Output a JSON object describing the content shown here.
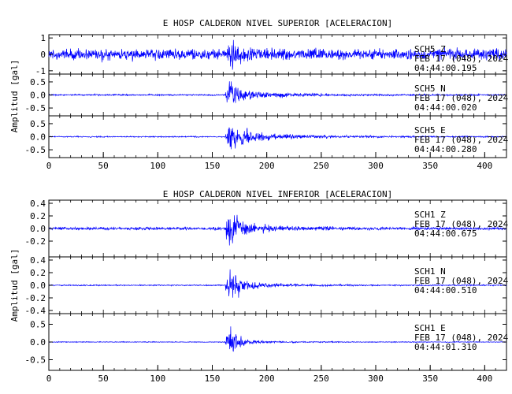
{
  "figure": {
    "panels": [
      {
        "title": "E HOSP CALDERON NIVEL SUPERIOR [ACELERACION]",
        "ylabel": "Amplitud [gal]",
        "traces": [
          {
            "channel": "SCH5   Z",
            "date": "FEB 17 (048), 2024",
            "time": "04:44:00.195",
            "yticks": [
              -1,
              0,
              1
            ],
            "ytick_labels": [
              "-1",
              "0",
              "1"
            ],
            "ylim": [
              -1.2,
              1.2
            ],
            "noise": 0.58,
            "peak": 1.15,
            "decay": 10,
            "tail": 0.15
          },
          {
            "channel": "SCH5   N",
            "date": "FEB 17 (048), 2024",
            "time": "04:44:00.020",
            "yticks": [
              -0.5,
              0.0,
              0.5
            ],
            "ytick_labels": [
              "-0.5",
              "0.0",
              "0.5"
            ],
            "ylim": [
              -0.8,
              0.8
            ],
            "noise": 0.05,
            "peak": 0.75,
            "decay": 14,
            "tail": 0.3
          },
          {
            "channel": "SCH5   E",
            "date": "FEB 17 (048), 2024",
            "time": "04:44:00.280",
            "yticks": [
              -0.5,
              0.0,
              0.5
            ],
            "ytick_labels": [
              "-0.5",
              "0.0",
              "0.5"
            ],
            "ylim": [
              -0.8,
              0.8
            ],
            "noise": 0.04,
            "peak": 0.75,
            "decay": 16,
            "tail": 0.35
          }
        ]
      },
      {
        "title": "E HOSP CALDERON NIVEL INFERIOR [ACELERACION]",
        "ylabel": "Amplitud [gal]",
        "traces": [
          {
            "channel": "SCH1   Z",
            "date": "FEB 17 (048), 2024",
            "time": "04:44:00.675",
            "yticks": [
              -0.2,
              0.0,
              0.2,
              0.4
            ],
            "ytick_labels": [
              "-0.2",
              "0.0",
              "0.2",
              "0.4"
            ],
            "ylim": [
              -0.45,
              0.45
            ],
            "noise": 0.04,
            "peak": 0.42,
            "decay": 12,
            "tail": 0.2
          },
          {
            "channel": "SCH1   N",
            "date": "FEB 17 (048), 2024",
            "time": "04:44:00.510",
            "yticks": [
              -0.4,
              -0.2,
              0.0,
              0.2,
              0.4
            ],
            "ytick_labels": [
              "-0.4",
              "-0.2",
              "0.0",
              "0.2",
              "0.4"
            ],
            "ylim": [
              -0.45,
              0.45
            ],
            "noise": 0.015,
            "peak": 0.42,
            "decay": 10,
            "tail": 0.25
          },
          {
            "channel": "SCH1   E",
            "date": "FEB 17 (048), 2024",
            "time": "04:44:01.310",
            "yticks": [
              -0.5,
              0.0,
              0.5
            ],
            "ytick_labels": [
              "-0.5",
              "0.0",
              "0.5"
            ],
            "ylim": [
              -0.8,
              0.8
            ],
            "noise": 0.02,
            "peak": 0.7,
            "decay": 8,
            "tail": 0.15
          }
        ]
      }
    ]
  },
  "chart_data": [
    {
      "type": "line",
      "title": "E HOSP CALDERON NIVEL SUPERIOR [ACELERACION]",
      "ylabel": "Amplitud [gal]",
      "xlabel": "",
      "xlim": [
        0,
        420
      ],
      "xticks": [
        0,
        50,
        100,
        150,
        200,
        250,
        300,
        350,
        400
      ],
      "line_color": "#0000ff",
      "series": [
        {
          "name": "SCH5   Z",
          "peak_time": 165,
          "ylim": [
            -1.2,
            1.2
          ]
        },
        {
          "name": "SCH5   N",
          "peak_time": 165,
          "ylim": [
            -0.8,
            0.8
          ]
        },
        {
          "name": "SCH5   E",
          "peak_time": 165,
          "ylim": [
            -0.8,
            0.8
          ]
        }
      ]
    },
    {
      "type": "line",
      "title": "E HOSP CALDERON NIVEL INFERIOR [ACELERACION]",
      "ylabel": "Amplitud [gal]",
      "xlabel": "",
      "xlim": [
        0,
        420
      ],
      "xticks": [
        0,
        50,
        100,
        150,
        200,
        250,
        300,
        350,
        400
      ],
      "line_color": "#0000ff",
      "series": [
        {
          "name": "SCH1   Z",
          "peak_time": 165,
          "ylim": [
            -0.45,
            0.45
          ]
        },
        {
          "name": "SCH1   N",
          "peak_time": 165,
          "ylim": [
            -0.45,
            0.45
          ]
        },
        {
          "name": "SCH1   E",
          "peak_time": 165,
          "ylim": [
            -0.8,
            0.8
          ]
        }
      ]
    }
  ]
}
